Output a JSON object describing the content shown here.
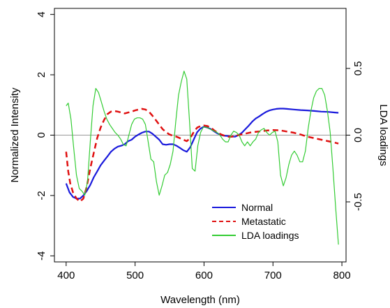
{
  "chart_data": {
    "type": "line",
    "xlabel": "Wavelength (nm)",
    "ylabel": "Normalized Intensity",
    "y2label": "LDA loadings",
    "xlim": [
      383,
      806
    ],
    "ylim": [
      -4.2,
      4.2
    ],
    "y2lim": [
      -0.95,
      0.95
    ],
    "x_ticks": [
      400,
      500,
      600,
      700,
      800
    ],
    "y_ticks": [
      -4,
      -2,
      0,
      2,
      4
    ],
    "y2_ticks": [
      -0.5,
      0.0,
      0.5
    ],
    "y_tick_labels": [
      "-4",
      "-2",
      "0",
      "2",
      "4"
    ],
    "y2_tick_labels": [
      "-0.5",
      "0.0",
      "0.5"
    ],
    "reference_line_y": 0,
    "legend_position": "bottom-right",
    "series": [
      {
        "name": "Normal",
        "axis": "left",
        "color": "#1a1adc",
        "style": "solid",
        "points": [
          [
            400,
            -1.6
          ],
          [
            405,
            -1.9
          ],
          [
            410,
            -2.05
          ],
          [
            415,
            -2.1
          ],
          [
            420,
            -2.1
          ],
          [
            425,
            -2.0
          ],
          [
            430,
            -1.85
          ],
          [
            435,
            -1.65
          ],
          [
            440,
            -1.4
          ],
          [
            445,
            -1.2
          ],
          [
            450,
            -1.0
          ],
          [
            455,
            -0.85
          ],
          [
            460,
            -0.7
          ],
          [
            465,
            -0.55
          ],
          [
            470,
            -0.45
          ],
          [
            475,
            -0.38
          ],
          [
            480,
            -0.35
          ],
          [
            485,
            -0.3
          ],
          [
            490,
            -0.2
          ],
          [
            495,
            -0.15
          ],
          [
            500,
            -0.05
          ],
          [
            505,
            0.02
          ],
          [
            510,
            0.08
          ],
          [
            515,
            0.12
          ],
          [
            520,
            0.12
          ],
          [
            525,
            0.05
          ],
          [
            530,
            -0.05
          ],
          [
            535,
            -0.15
          ],
          [
            540,
            -0.3
          ],
          [
            545,
            -0.32
          ],
          [
            550,
            -0.3
          ],
          [
            555,
            -0.3
          ],
          [
            560,
            -0.35
          ],
          [
            565,
            -0.42
          ],
          [
            570,
            -0.5
          ],
          [
            575,
            -0.55
          ],
          [
            580,
            -0.4
          ],
          [
            585,
            -0.15
          ],
          [
            590,
            0.1
          ],
          [
            595,
            0.22
          ],
          [
            600,
            0.28
          ],
          [
            605,
            0.25
          ],
          [
            610,
            0.2
          ],
          [
            615,
            0.12
          ],
          [
            620,
            0.05
          ],
          [
            625,
            0.0
          ],
          [
            630,
            -0.02
          ],
          [
            635,
            -0.03
          ],
          [
            640,
            -0.05
          ],
          [
            645,
            -0.05
          ],
          [
            650,
            0.0
          ],
          [
            655,
            0.08
          ],
          [
            660,
            0.2
          ],
          [
            665,
            0.32
          ],
          [
            670,
            0.45
          ],
          [
            675,
            0.55
          ],
          [
            680,
            0.62
          ],
          [
            685,
            0.7
          ],
          [
            690,
            0.77
          ],
          [
            695,
            0.82
          ],
          [
            700,
            0.85
          ],
          [
            705,
            0.87
          ],
          [
            710,
            0.88
          ],
          [
            715,
            0.88
          ],
          [
            720,
            0.87
          ],
          [
            730,
            0.85
          ],
          [
            740,
            0.83
          ],
          [
            750,
            0.82
          ],
          [
            760,
            0.8
          ],
          [
            770,
            0.78
          ],
          [
            780,
            0.77
          ],
          [
            790,
            0.75
          ],
          [
            795,
            0.74
          ]
        ]
      },
      {
        "name": "Metastatic",
        "axis": "left",
        "color": "#e01010",
        "style": "dashed",
        "points": [
          [
            400,
            -0.55
          ],
          [
            403,
            -1.2
          ],
          [
            406,
            -1.6
          ],
          [
            410,
            -1.9
          ],
          [
            415,
            -2.1
          ],
          [
            420,
            -2.2
          ],
          [
            425,
            -2.1
          ],
          [
            430,
            -1.7
          ],
          [
            435,
            -1.1
          ],
          [
            440,
            -0.6
          ],
          [
            445,
            -0.1
          ],
          [
            450,
            0.25
          ],
          [
            455,
            0.5
          ],
          [
            460,
            0.7
          ],
          [
            465,
            0.78
          ],
          [
            470,
            0.8
          ],
          [
            475,
            0.78
          ],
          [
            480,
            0.75
          ],
          [
            485,
            0.72
          ],
          [
            490,
            0.75
          ],
          [
            495,
            0.78
          ],
          [
            500,
            0.82
          ],
          [
            505,
            0.85
          ],
          [
            510,
            0.87
          ],
          [
            515,
            0.85
          ],
          [
            520,
            0.78
          ],
          [
            525,
            0.65
          ],
          [
            530,
            0.5
          ],
          [
            535,
            0.35
          ],
          [
            540,
            0.2
          ],
          [
            545,
            0.1
          ],
          [
            550,
            0.02
          ],
          [
            555,
            -0.02
          ],
          [
            560,
            -0.05
          ],
          [
            565,
            -0.1
          ],
          [
            570,
            -0.15
          ],
          [
            575,
            -0.2
          ],
          [
            580,
            -0.1
          ],
          [
            585,
            0.1
          ],
          [
            590,
            0.25
          ],
          [
            595,
            0.3
          ],
          [
            600,
            0.32
          ],
          [
            605,
            0.3
          ],
          [
            610,
            0.25
          ],
          [
            615,
            0.15
          ],
          [
            620,
            0.08
          ],
          [
            625,
            0.02
          ],
          [
            630,
            -0.02
          ],
          [
            635,
            -0.05
          ],
          [
            640,
            -0.05
          ],
          [
            650,
            0.0
          ],
          [
            660,
            0.05
          ],
          [
            670,
            0.1
          ],
          [
            680,
            0.12
          ],
          [
            690,
            0.15
          ],
          [
            700,
            0.17
          ],
          [
            710,
            0.16
          ],
          [
            720,
            0.12
          ],
          [
            730,
            0.08
          ],
          [
            740,
            0.02
          ],
          [
            750,
            -0.05
          ],
          [
            760,
            -0.1
          ],
          [
            770,
            -0.15
          ],
          [
            780,
            -0.2
          ],
          [
            790,
            -0.25
          ],
          [
            795,
            -0.28
          ]
        ]
      },
      {
        "name": "LDA loadings",
        "axis": "right",
        "color": "#33cc33",
        "style": "solid",
        "points": [
          [
            400,
            0.22
          ],
          [
            403,
            0.24
          ],
          [
            407,
            0.12
          ],
          [
            411,
            -0.1
          ],
          [
            415,
            -0.3
          ],
          [
            419,
            -0.4
          ],
          [
            423,
            -0.42
          ],
          [
            427,
            -0.45
          ],
          [
            431,
            -0.35
          ],
          [
            435,
            -0.05
          ],
          [
            439,
            0.22
          ],
          [
            443,
            0.35
          ],
          [
            447,
            0.32
          ],
          [
            451,
            0.25
          ],
          [
            455,
            0.18
          ],
          [
            459,
            0.12
          ],
          [
            463,
            0.08
          ],
          [
            467,
            0.05
          ],
          [
            471,
            0.02
          ],
          [
            475,
            0.0
          ],
          [
            479,
            -0.03
          ],
          [
            483,
            -0.07
          ],
          [
            487,
            -0.08
          ],
          [
            491,
            0.0
          ],
          [
            495,
            0.08
          ],
          [
            499,
            0.12
          ],
          [
            503,
            0.13
          ],
          [
            507,
            0.13
          ],
          [
            511,
            0.12
          ],
          [
            515,
            0.08
          ],
          [
            519,
            -0.05
          ],
          [
            523,
            -0.18
          ],
          [
            527,
            -0.2
          ],
          [
            531,
            -0.35
          ],
          [
            535,
            -0.45
          ],
          [
            539,
            -0.38
          ],
          [
            543,
            -0.3
          ],
          [
            547,
            -0.28
          ],
          [
            551,
            -0.22
          ],
          [
            555,
            -0.12
          ],
          [
            559,
            0.1
          ],
          [
            563,
            0.3
          ],
          [
            567,
            0.4
          ],
          [
            571,
            0.48
          ],
          [
            575,
            0.42
          ],
          [
            579,
            0.1
          ],
          [
            583,
            -0.25
          ],
          [
            587,
            -0.27
          ],
          [
            591,
            -0.08
          ],
          [
            595,
            0.02
          ],
          [
            599,
            0.06
          ],
          [
            603,
            0.06
          ],
          [
            607,
            0.05
          ],
          [
            611,
            0.04
          ],
          [
            615,
            0.03
          ],
          [
            619,
            0.02
          ],
          [
            623,
            0.0
          ],
          [
            627,
            -0.03
          ],
          [
            631,
            -0.05
          ],
          [
            635,
            -0.05
          ],
          [
            639,
            0.0
          ],
          [
            643,
            0.03
          ],
          [
            647,
            0.02
          ],
          [
            651,
            0.0
          ],
          [
            655,
            -0.05
          ],
          [
            659,
            -0.08
          ],
          [
            663,
            -0.05
          ],
          [
            667,
            -0.08
          ],
          [
            671,
            -0.05
          ],
          [
            675,
            -0.03
          ],
          [
            679,
            0.02
          ],
          [
            683,
            0.04
          ],
          [
            687,
            0.05
          ],
          [
            691,
            0.02
          ],
          [
            695,
            0.0
          ],
          [
            699,
            0.02
          ],
          [
            703,
            0.03
          ],
          [
            707,
            -0.05
          ],
          [
            711,
            -0.3
          ],
          [
            715,
            -0.38
          ],
          [
            719,
            -0.32
          ],
          [
            723,
            -0.22
          ],
          [
            727,
            -0.15
          ],
          [
            731,
            -0.12
          ],
          [
            735,
            -0.15
          ],
          [
            739,
            -0.2
          ],
          [
            743,
            -0.2
          ],
          [
            747,
            -0.12
          ],
          [
            751,
            0.05
          ],
          [
            755,
            0.18
          ],
          [
            759,
            0.28
          ],
          [
            763,
            0.33
          ],
          [
            767,
            0.35
          ],
          [
            771,
            0.35
          ],
          [
            775,
            0.3
          ],
          [
            779,
            0.18
          ],
          [
            783,
            0.02
          ],
          [
            787,
            -0.25
          ],
          [
            791,
            -0.55
          ],
          [
            795,
            -0.82
          ]
        ]
      }
    ]
  }
}
